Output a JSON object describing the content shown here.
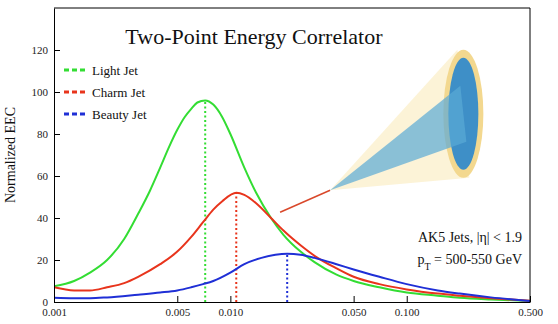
{
  "chart_data": {
    "type": "line",
    "title": "Two-Point Energy Correlator",
    "y_label": "Normalized EEC",
    "annotations": [
      "AK5 Jets, |η| < 1.9",
      "pT = 500-550 GeV"
    ],
    "log": "x",
    "grid": false,
    "legend": "upper left",
    "xlim": [
      0.001,
      0.5
    ],
    "xticks": [
      0.001,
      0.005,
      {
        "value": 0.01,
        "label": "0.010"
      },
      {
        "value": 0.05,
        "label": "0.050"
      },
      {
        "value": 0.1,
        "label": "0.100"
      },
      {
        "value": 0.5,
        "label": "0.500"
      }
    ],
    "ylim": [
      0,
      140
    ],
    "yticks": [
      0,
      20,
      40,
      60,
      80,
      100,
      120
    ],
    "series": [
      {
        "name": "Light Jet",
        "color": "#33dd33",
        "line_style": "solid",
        "x": [
          0.001,
          0.0013,
          0.0016,
          0.002,
          0.0025,
          0.003,
          0.0035,
          0.004,
          0.0045,
          0.005,
          0.0055,
          0.006,
          0.0065,
          0.0072,
          0.008,
          0.009,
          0.01,
          0.012,
          0.014,
          0.017,
          0.02,
          0.025,
          0.03,
          0.04,
          0.05,
          0.07,
          0.1,
          0.15,
          0.2,
          0.3,
          0.5
        ],
        "values": [
          7.5,
          10,
          14,
          20,
          30,
          42,
          53,
          64,
          74,
          82,
          88,
          92,
          95,
          96,
          94,
          88,
          80,
          64,
          52,
          40,
          32,
          24,
          19,
          13,
          10,
          7,
          4.5,
          3,
          2,
          1.2,
          0.5
        ],
        "peak_x": 0.0072,
        "peak_y": 96
      },
      {
        "name": "Charm Jet",
        "color": "#e8341c",
        "line_style": "solid",
        "x": [
          0.001,
          0.0013,
          0.0016,
          0.002,
          0.0025,
          0.003,
          0.004,
          0.005,
          0.006,
          0.007,
          0.008,
          0.009,
          0.0108,
          0.012,
          0.014,
          0.017,
          0.02,
          0.025,
          0.03,
          0.04,
          0.05,
          0.07,
          0.1,
          0.15,
          0.2,
          0.3,
          0.5
        ],
        "values": [
          7,
          5.5,
          5.5,
          7,
          9,
          12,
          18,
          24,
          31,
          38,
          44,
          48,
          52,
          51,
          47,
          40,
          34,
          27,
          22,
          16,
          12,
          8.5,
          6,
          4,
          3,
          1.8,
          0.6
        ],
        "peak_x": 0.0108,
        "peak_y": 52
      },
      {
        "name": "Beauty Jet",
        "color": "#1f2fd6",
        "line_style": "solid",
        "x": [
          0.001,
          0.0013,
          0.0016,
          0.002,
          0.003,
          0.004,
          0.005,
          0.006,
          0.007,
          0.008,
          0.01,
          0.012,
          0.015,
          0.018,
          0.021,
          0.025,
          0.03,
          0.04,
          0.05,
          0.07,
          0.1,
          0.15,
          0.2,
          0.3,
          0.5
        ],
        "values": [
          2,
          1.8,
          1.8,
          2.2,
          3.5,
          4.5,
          5.5,
          7,
          8.5,
          10,
          14,
          18,
          21,
          22.5,
          23,
          22.5,
          21,
          18,
          15.5,
          12,
          8.5,
          5.5,
          4,
          2.2,
          0.5
        ],
        "peak_x": 0.021,
        "peak_y": 23
      }
    ]
  }
}
